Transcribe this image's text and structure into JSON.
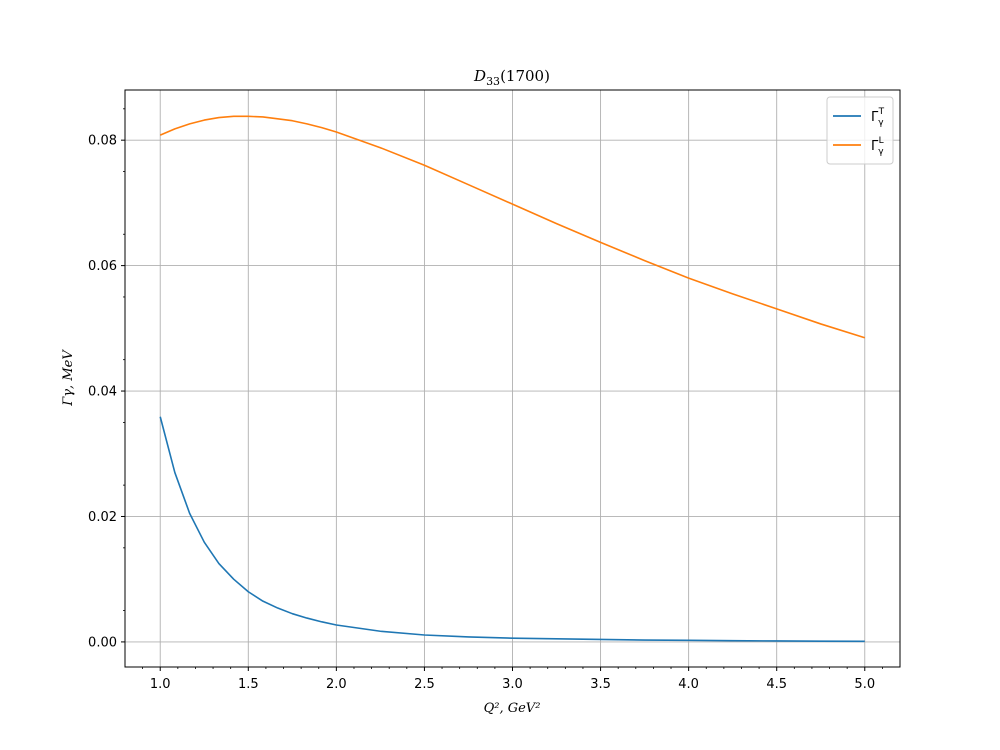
{
  "chart_data": {
    "type": "line",
    "title": "D33(1700)",
    "title_parts": {
      "main": "D",
      "sub": "33",
      "rest": "(1700)"
    },
    "xlabel": "Q², GeV²",
    "ylabel": "Γγ, MeV",
    "xlim": [
      0.8,
      5.2
    ],
    "ylim": [
      -0.004,
      0.088
    ],
    "x_ticks": [
      "1.0",
      "1.5",
      "2.0",
      "2.5",
      "3.0",
      "3.5",
      "4.0",
      "4.5",
      "5.0"
    ],
    "y_ticks": [
      "0.00",
      "0.02",
      "0.04",
      "0.06",
      "0.08"
    ],
    "grid": true,
    "legend_position": "top-right",
    "colors": {
      "transverse": "#1f77b4",
      "longitudinal": "#ff7f0e",
      "grid": "#b0b0b0"
    },
    "x": [
      1.0,
      1.083,
      1.167,
      1.25,
      1.333,
      1.417,
      1.5,
      1.583,
      1.667,
      1.75,
      1.833,
      1.917,
      2.0,
      2.25,
      2.5,
      2.75,
      3.0,
      3.25,
      3.5,
      3.75,
      4.0,
      4.25,
      4.5,
      4.75,
      5.0
    ],
    "series": [
      {
        "name": "ΓγT",
        "label_main": "Γ",
        "label_sub": "γ",
        "label_sup": "T",
        "values": [
          0.0359,
          0.027,
          0.0205,
          0.0159,
          0.0125,
          0.01,
          0.008,
          0.0065,
          0.0054,
          0.0045,
          0.0038,
          0.0032,
          0.0027,
          0.0017,
          0.0011,
          0.0008,
          0.0006,
          0.0005,
          0.0004,
          0.0003,
          0.00025,
          0.0002,
          0.00015,
          0.00012,
          0.0001
        ]
      },
      {
        "name": "ΓγL",
        "label_main": "Γ",
        "label_sub": "γ",
        "label_sup": "L",
        "values": [
          0.0808,
          0.0818,
          0.0826,
          0.0832,
          0.0836,
          0.0838,
          0.0838,
          0.0837,
          0.0834,
          0.0831,
          0.0826,
          0.082,
          0.0813,
          0.0788,
          0.076,
          0.0729,
          0.0698,
          0.0667,
          0.0637,
          0.0608,
          0.058,
          0.0555,
          0.0531,
          0.0507,
          0.0485
        ]
      }
    ]
  }
}
